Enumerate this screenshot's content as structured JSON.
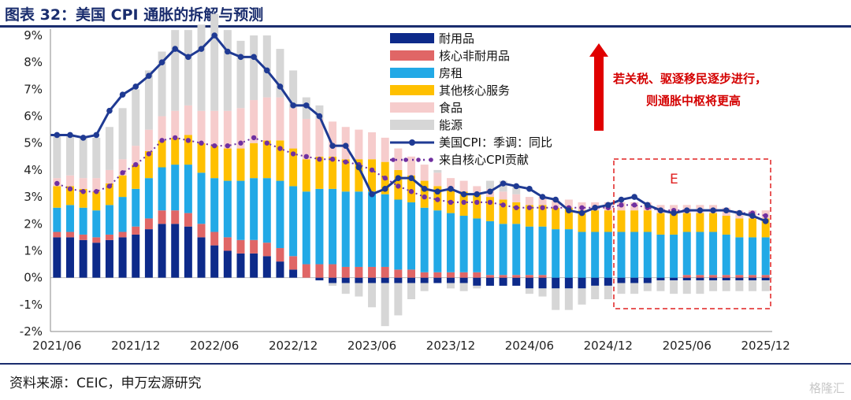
{
  "header": {
    "title": "图表 32：美国 CPI 通胀的拆解与预测"
  },
  "footer": {
    "source": "资料来源：CEIC，申万宏源研究",
    "watermark": "格隆汇"
  },
  "annotation": {
    "line1": "若关税、驱逐移民逐步进行，",
    "line2": "则通胀中枢将更高",
    "forecast_box_label": "E"
  },
  "colors": {
    "durable": "#0d2a8a",
    "core_nondurable": "#e06666",
    "rent": "#22a9e6",
    "other_core_services": "#ffc000",
    "food": "#f6cccc",
    "energy": "#d6d6d6",
    "headline": "#1f3a93",
    "core_contrib": "#7030a0",
    "accent": "#d40000",
    "title": "#1a2d6e"
  },
  "chart_data": {
    "type": "bar",
    "title": "",
    "ylim": [
      -2,
      9
    ],
    "y_ticks": [
      "-2%",
      "-1%",
      "0%",
      "1%",
      "2%",
      "3%",
      "4%",
      "5%",
      "6%",
      "7%",
      "8%",
      "9%"
    ],
    "x_ticks": [
      "2021/06",
      "2021/12",
      "2022/06",
      "2022/12",
      "2023/06",
      "2023/12",
      "2024/06",
      "2024/12",
      "2025/06",
      "2025/12"
    ],
    "legend_position": "top-center",
    "periods_start": "2021/06",
    "periods_end": "2025/12",
    "forecast_from": "2024/12",
    "legend": [
      {
        "key": "durable",
        "label": "耐用品",
        "kind": "bar"
      },
      {
        "key": "core_nondurable",
        "label": "核心非耐用品",
        "kind": "bar"
      },
      {
        "key": "rent",
        "label": "房租",
        "kind": "bar"
      },
      {
        "key": "other_core_services",
        "label": "其他核心服务",
        "kind": "bar"
      },
      {
        "key": "food",
        "label": "食品",
        "kind": "bar"
      },
      {
        "key": "energy",
        "label": "能源",
        "kind": "bar"
      },
      {
        "key": "headline",
        "label": "美国CPI：季调：同比",
        "kind": "line"
      },
      {
        "key": "core_contrib",
        "label": "来自核心CPI贡献",
        "kind": "dotline"
      }
    ],
    "series": {
      "durable": [
        1.5,
        1.5,
        1.4,
        1.3,
        1.4,
        1.5,
        1.6,
        1.8,
        2.0,
        2.0,
        1.9,
        1.5,
        1.2,
        1.0,
        0.9,
        0.9,
        0.8,
        0.6,
        0.3,
        0.0,
        -0.1,
        -0.2,
        -0.2,
        -0.2,
        -0.2,
        -0.2,
        -0.2,
        -0.2,
        -0.2,
        -0.2,
        -0.2,
        -0.2,
        -0.3,
        -0.3,
        -0.3,
        -0.3,
        -0.4,
        -0.4,
        -0.4,
        -0.4,
        -0.4,
        -0.3,
        -0.3,
        -0.2,
        -0.2,
        -0.2,
        -0.1,
        -0.1,
        -0.1,
        -0.1,
        -0.1,
        -0.1,
        -0.1,
        -0.1,
        -0.1
      ],
      "core_nondurable": [
        0.2,
        0.2,
        0.2,
        0.2,
        0.2,
        0.2,
        0.3,
        0.4,
        0.5,
        0.5,
        0.5,
        0.5,
        0.5,
        0.5,
        0.5,
        0.5,
        0.5,
        0.5,
        0.5,
        0.5,
        0.5,
        0.5,
        0.4,
        0.4,
        0.4,
        0.4,
        0.3,
        0.3,
        0.2,
        0.2,
        0.2,
        0.2,
        0.2,
        0.1,
        0.1,
        0.1,
        0.1,
        0.1,
        0.0,
        0.0,
        0.0,
        0.0,
        0.0,
        0.0,
        0.0,
        0.0,
        0.0,
        0.0,
        0.1,
        0.1,
        0.1,
        0.1,
        0.1,
        0.1,
        0.1
      ],
      "rent": [
        0.9,
        1.0,
        1.0,
        1.0,
        1.1,
        1.3,
        1.4,
        1.5,
        1.6,
        1.7,
        1.8,
        1.9,
        2.0,
        2.1,
        2.2,
        2.3,
        2.4,
        2.5,
        2.6,
        2.7,
        2.8,
        2.8,
        2.8,
        2.8,
        2.8,
        2.7,
        2.6,
        2.5,
        2.4,
        2.3,
        2.2,
        2.1,
        2.0,
        2.0,
        1.9,
        1.9,
        1.8,
        1.8,
        1.8,
        1.8,
        1.7,
        1.7,
        1.7,
        1.7,
        1.7,
        1.7,
        1.6,
        1.6,
        1.6,
        1.6,
        1.6,
        1.5,
        1.4,
        1.4,
        1.4
      ],
      "other_core_services": [
        0.8,
        0.7,
        0.7,
        0.7,
        0.8,
        0.8,
        0.9,
        1.0,
        1.0,
        1.0,
        1.1,
        1.1,
        1.2,
        1.2,
        1.2,
        1.3,
        1.4,
        1.5,
        1.4,
        1.2,
        1.2,
        1.2,
        1.2,
        1.2,
        1.2,
        1.2,
        1.1,
        1.0,
        1.0,
        0.9,
        0.9,
        0.9,
        0.9,
        0.9,
        0.9,
        0.8,
        0.8,
        0.8,
        0.8,
        0.8,
        0.8,
        0.8,
        0.8,
        0.8,
        0.8,
        0.8,
        0.8,
        0.8,
        0.7,
        0.7,
        0.7,
        0.7,
        0.7,
        0.7,
        0.7
      ],
      "food": [
        0.3,
        0.4,
        0.4,
        0.5,
        0.5,
        0.6,
        0.7,
        0.8,
        0.9,
        1.0,
        1.1,
        1.2,
        1.3,
        1.4,
        1.5,
        1.6,
        1.6,
        1.6,
        1.5,
        1.5,
        1.4,
        1.3,
        1.2,
        1.1,
        1.0,
        0.9,
        0.8,
        0.7,
        0.6,
        0.5,
        0.4,
        0.4,
        0.3,
        0.3,
        0.3,
        0.3,
        0.3,
        0.3,
        0.3,
        0.3,
        0.3,
        0.3,
        0.3,
        0.3,
        0.3,
        0.3,
        0.3,
        0.3,
        0.3,
        0.3,
        0.3,
        0.3,
        0.3,
        0.3,
        0.3
      ],
      "energy": [
        1.6,
        1.5,
        1.5,
        1.5,
        1.6,
        1.9,
        2.1,
        2.2,
        2.4,
        3.0,
        2.8,
        3.2,
        3.6,
        3.0,
        2.5,
        2.4,
        2.3,
        1.8,
        1.4,
        0.8,
        0.5,
        -0.1,
        -0.4,
        -0.5,
        -0.9,
        -1.6,
        -1.2,
        -0.6,
        -0.3,
        0.1,
        -0.2,
        -0.3,
        -0.1,
        0.3,
        0.4,
        0.3,
        -0.2,
        -0.3,
        -0.8,
        -0.8,
        -0.6,
        -0.5,
        -0.5,
        -0.4,
        -0.4,
        -0.3,
        -0.4,
        -0.5,
        -0.5,
        -0.5,
        -0.4,
        -0.4,
        -0.4,
        -0.4,
        -0.4
      ],
      "headline": [
        5.3,
        5.3,
        5.2,
        5.3,
        6.2,
        6.8,
        7.1,
        7.5,
        8.0,
        8.5,
        8.2,
        8.5,
        9.0,
        8.4,
        8.2,
        8.2,
        7.7,
        7.1,
        6.4,
        6.4,
        6.0,
        4.9,
        4.9,
        4.1,
        3.1,
        3.3,
        3.7,
        3.7,
        3.3,
        3.2,
        3.3,
        3.1,
        3.1,
        3.2,
        3.5,
        3.4,
        3.3,
        3.0,
        2.9,
        2.5,
        2.4,
        2.6,
        2.7,
        2.9,
        3.0,
        2.7,
        2.5,
        2.4,
        2.5,
        2.5,
        2.5,
        2.5,
        2.4,
        2.3,
        2.1
      ],
      "core_contrib": [
        3.5,
        3.3,
        3.2,
        3.2,
        3.4,
        3.9,
        4.2,
        4.6,
        5.1,
        5.2,
        5.1,
        5.0,
        4.9,
        4.9,
        5.0,
        5.2,
        5.0,
        4.8,
        4.6,
        4.5,
        4.4,
        4.4,
        4.3,
        4.2,
        4.0,
        3.7,
        3.4,
        3.2,
        3.0,
        2.9,
        2.8,
        2.8,
        2.8,
        2.8,
        2.7,
        2.6,
        2.6,
        2.6,
        2.6,
        2.6,
        2.6,
        2.6,
        2.6,
        2.7,
        2.7,
        2.6,
        2.5,
        2.5,
        2.5,
        2.5,
        2.5,
        2.5,
        2.4,
        2.4,
        2.3
      ]
    }
  }
}
